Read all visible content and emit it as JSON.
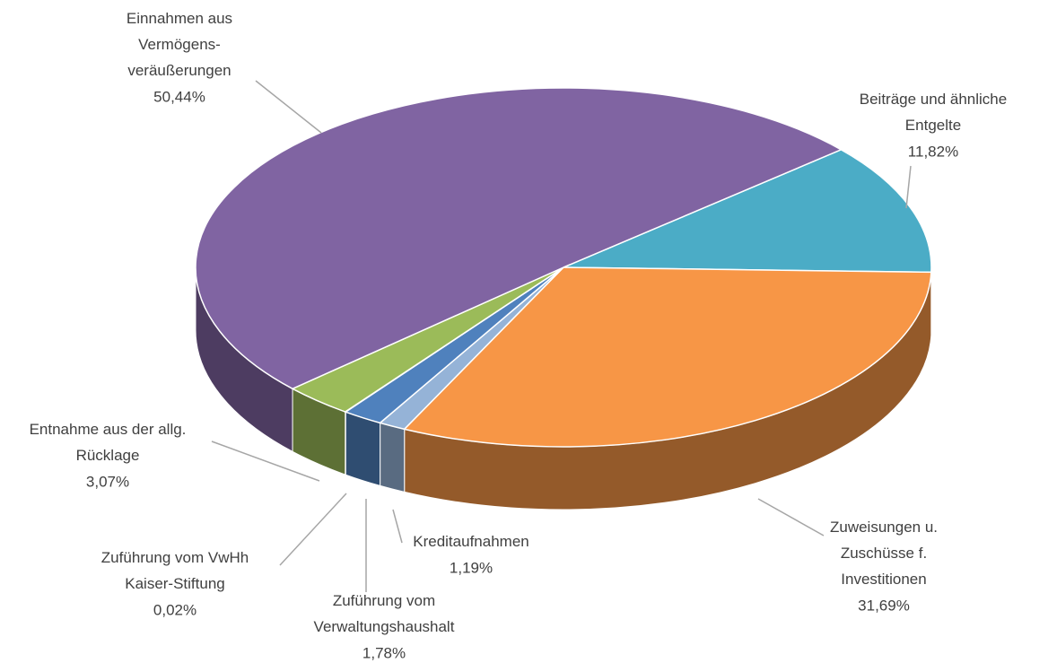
{
  "chart_data": {
    "type": "pie",
    "categories": [
      "Beiträge und ähnliche\nEntgelte",
      "Zuweisungen u.\nZuschüsse f.\nInvestitionen",
      "Kreditaufnahmen",
      "Zuführung vom\nVerwaltungshaushalt",
      "Zuführung vom VwHh\nKaiser-Stiftung",
      "Entnahme aus der allg.\nRücklage",
      "Einnahmen aus\nVermögens-\nveräußerungen"
    ],
    "values": [
      11.82,
      31.69,
      1.19,
      1.78,
      0.02,
      3.07,
      50.44
    ],
    "value_labels": [
      "11,82%",
      "31,69%",
      "1,19%",
      "1,78%",
      "0,02%",
      "3,07%",
      "50,44%"
    ],
    "colors": [
      "#4bacc6",
      "#f79646",
      "#95b3d7",
      "#4f81bd",
      "#3a5f8f",
      "#9bbb59",
      "#8064a2"
    ]
  }
}
